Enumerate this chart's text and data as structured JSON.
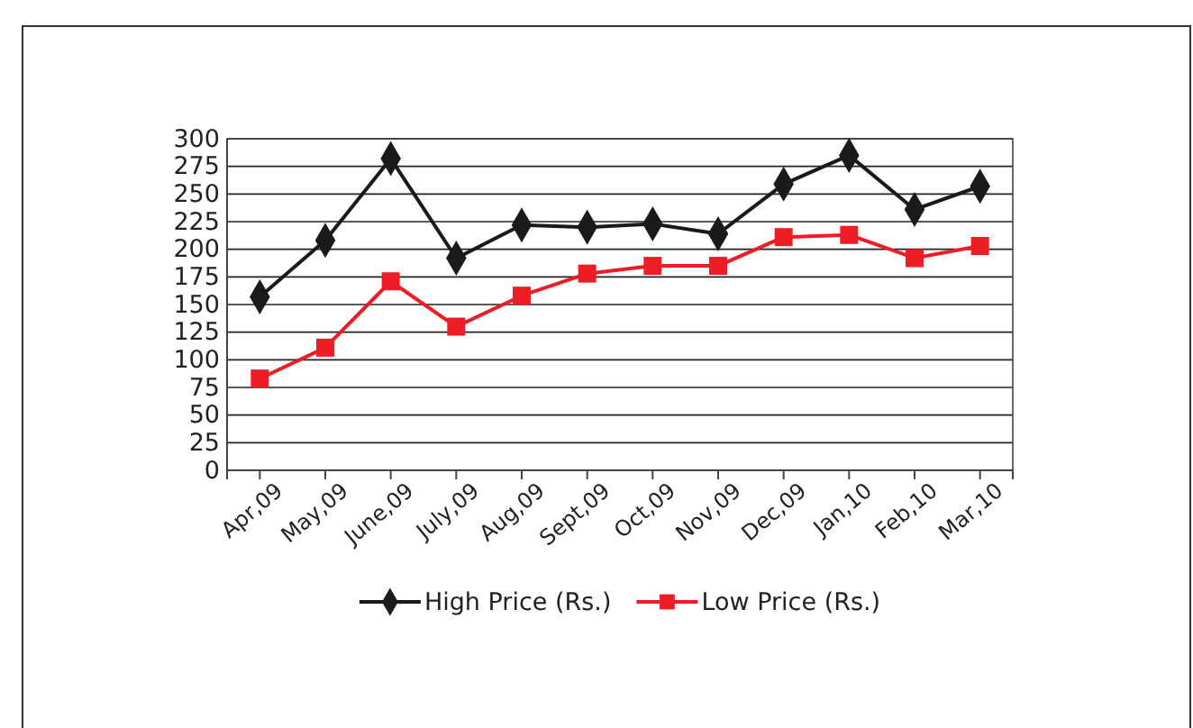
{
  "chart_data": {
    "type": "line",
    "categories": [
      "Apr,09",
      "May,09",
      "June,09",
      "July,09",
      "Aug,09",
      "Sept,09",
      "Oct,09",
      "Nov,09",
      "Dec,09",
      "Jan,10",
      "Feb,10",
      "Mar,10"
    ],
    "series": [
      {
        "name": "High Price (Rs.)",
        "color": "#1a1a1a",
        "marker": "diamond",
        "values": [
          157,
          208,
          282,
          192,
          222,
          220,
          223,
          214,
          259,
          285,
          236,
          257
        ]
      },
      {
        "name": "Low Price (Rs.)",
        "color": "#ee1c25",
        "marker": "square",
        "values": [
          83,
          111,
          171,
          130,
          158,
          178,
          185,
          185,
          211,
          213,
          192,
          203
        ]
      }
    ],
    "ylim": [
      0,
      300
    ],
    "yticks": [
      0,
      25,
      50,
      75,
      100,
      125,
      150,
      175,
      200,
      225,
      250,
      275,
      300
    ],
    "grid": "y",
    "legend": "bottom"
  }
}
